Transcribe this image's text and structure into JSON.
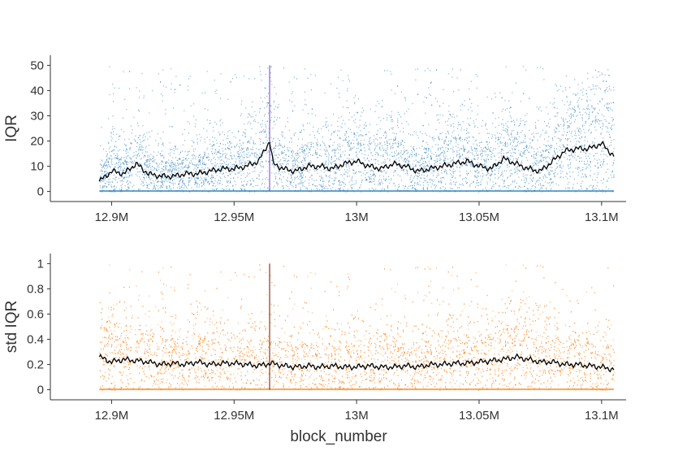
{
  "chart_data": [
    {
      "type": "scatter",
      "panel": "top",
      "ylabel": "IQR",
      "xlabel": "",
      "xlim": [
        12.875,
        13.11
      ],
      "ylim": [
        -4,
        54
      ],
      "x_ticks": [
        12.9,
        12.95,
        13.0,
        13.05,
        13.1
      ],
      "x_tick_labels": [
        "12.9M",
        "12.95M",
        "13M",
        "13.05M",
        "13.1M"
      ],
      "y_ticks": [
        0,
        10,
        20,
        30,
        40,
        50
      ],
      "y_tick_labels": [
        "0",
        "10",
        "20",
        "30",
        "40",
        "50"
      ],
      "grid": false,
      "series": [
        {
          "name": "IQR points",
          "style": "dense scatter",
          "color": "#1f77b4",
          "x_range": [
            12.895,
            13.105
          ],
          "y_range": [
            0,
            50
          ]
        },
        {
          "name": "rolling mean",
          "style": "line",
          "color": "#000000",
          "x": [
            12.895,
            12.9,
            12.905,
            12.91,
            12.915,
            12.92,
            12.925,
            12.93,
            12.935,
            12.94,
            12.945,
            12.95,
            12.955,
            12.96,
            12.9645,
            12.966,
            12.97,
            12.975,
            12.98,
            12.985,
            12.99,
            12.995,
            13.0,
            13.005,
            13.01,
            13.015,
            13.02,
            13.025,
            13.03,
            13.035,
            13.04,
            13.045,
            13.05,
            13.055,
            13.06,
            13.065,
            13.07,
            13.075,
            13.08,
            13.085,
            13.09,
            13.095,
            13.1,
            13.105
          ],
          "y": [
            4,
            8,
            7,
            11,
            7,
            6,
            6,
            7,
            7,
            8,
            9,
            9,
            10,
            12,
            20,
            11,
            9,
            8,
            10,
            10,
            9,
            11,
            12,
            10,
            9,
            11,
            10,
            8,
            9,
            10,
            11,
            12,
            10,
            9,
            13,
            11,
            9,
            8,
            12,
            16,
            17,
            17,
            19,
            14
          ]
        },
        {
          "name": "marker",
          "style": "vertical line",
          "color": "#8a5fcf",
          "x": 12.9645,
          "y_range": [
            0,
            50
          ]
        }
      ]
    },
    {
      "type": "scatter",
      "panel": "bottom",
      "ylabel": "std IQR",
      "xlabel": "block_number",
      "xlim": [
        12.875,
        13.11
      ],
      "ylim": [
        -0.08,
        1.08
      ],
      "x_ticks": [
        12.9,
        12.95,
        13.0,
        13.05,
        13.1
      ],
      "x_tick_labels": [
        "12.9M",
        "12.95M",
        "13M",
        "13.05M",
        "13.1M"
      ],
      "y_ticks": [
        0,
        0.2,
        0.4,
        0.6,
        0.8,
        1
      ],
      "y_tick_labels": [
        "0",
        "0.2",
        "0.4",
        "0.6",
        "0.8",
        "1"
      ],
      "grid": false,
      "series": [
        {
          "name": "std IQR points",
          "style": "dense scatter",
          "color": "#ff7f0e",
          "x_range": [
            12.895,
            13.105
          ],
          "y_range": [
            0,
            1
          ]
        },
        {
          "name": "rolling mean",
          "style": "line",
          "color": "#000000",
          "x": [
            12.895,
            12.9,
            12.905,
            12.91,
            12.915,
            12.92,
            12.925,
            12.93,
            12.935,
            12.94,
            12.945,
            12.95,
            12.955,
            12.96,
            12.965,
            12.97,
            12.975,
            12.98,
            12.985,
            12.99,
            12.995,
            13.0,
            13.005,
            13.01,
            13.015,
            13.02,
            13.025,
            13.03,
            13.035,
            13.04,
            13.045,
            13.05,
            13.055,
            13.06,
            13.065,
            13.07,
            13.075,
            13.08,
            13.085,
            13.09,
            13.095,
            13.1,
            13.105
          ],
          "y": [
            0.26,
            0.22,
            0.24,
            0.23,
            0.22,
            0.2,
            0.21,
            0.2,
            0.22,
            0.2,
            0.21,
            0.21,
            0.2,
            0.19,
            0.21,
            0.19,
            0.18,
            0.19,
            0.18,
            0.19,
            0.18,
            0.18,
            0.19,
            0.18,
            0.18,
            0.19,
            0.18,
            0.2,
            0.2,
            0.21,
            0.21,
            0.22,
            0.23,
            0.24,
            0.26,
            0.24,
            0.22,
            0.22,
            0.2,
            0.2,
            0.19,
            0.18,
            0.16
          ]
        },
        {
          "name": "marker",
          "style": "vertical line",
          "color": "#8b3a1a",
          "x": 12.9645,
          "y_range": [
            0,
            1
          ]
        }
      ]
    }
  ]
}
